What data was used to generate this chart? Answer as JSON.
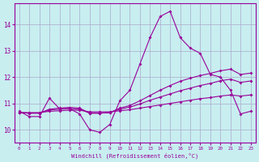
{
  "xlabel": "Windchill (Refroidissement éolien,°C)",
  "background_color": "#c8eef0",
  "line_color": "#990099",
  "grid_color": "#aaaacc",
  "xlim": [
    -0.5,
    23.5
  ],
  "ylim": [
    9.5,
    14.8
  ],
  "yticks": [
    10,
    11,
    12,
    13,
    14
  ],
  "xticks": [
    0,
    1,
    2,
    3,
    4,
    5,
    6,
    7,
    8,
    9,
    10,
    11,
    12,
    13,
    14,
    15,
    16,
    17,
    18,
    19,
    20,
    21,
    22,
    23
  ],
  "series1": [
    10.7,
    10.5,
    10.5,
    11.2,
    10.8,
    10.8,
    10.6,
    10.0,
    9.9,
    10.2,
    11.1,
    11.5,
    12.5,
    13.5,
    14.3,
    14.5,
    13.5,
    13.1,
    12.9,
    12.1,
    12.0,
    11.5,
    10.6,
    10.7
  ],
  "series2": [
    10.65,
    10.65,
    10.65,
    10.7,
    10.72,
    10.74,
    10.74,
    10.68,
    10.68,
    10.68,
    10.72,
    10.76,
    10.82,
    10.88,
    10.94,
    11.0,
    11.06,
    11.12,
    11.18,
    11.22,
    11.28,
    11.32,
    11.28,
    11.32
  ],
  "series3": [
    10.65,
    10.63,
    10.63,
    10.75,
    10.78,
    10.8,
    10.78,
    10.63,
    10.63,
    10.65,
    10.78,
    10.86,
    10.98,
    11.12,
    11.24,
    11.36,
    11.48,
    11.58,
    11.68,
    11.76,
    11.86,
    11.92,
    11.8,
    11.85
  ],
  "series4": [
    10.65,
    10.63,
    10.63,
    10.78,
    10.82,
    10.85,
    10.82,
    10.63,
    10.63,
    10.65,
    10.82,
    10.92,
    11.1,
    11.3,
    11.5,
    11.68,
    11.84,
    11.96,
    12.06,
    12.14,
    12.24,
    12.3,
    12.1,
    12.15
  ]
}
